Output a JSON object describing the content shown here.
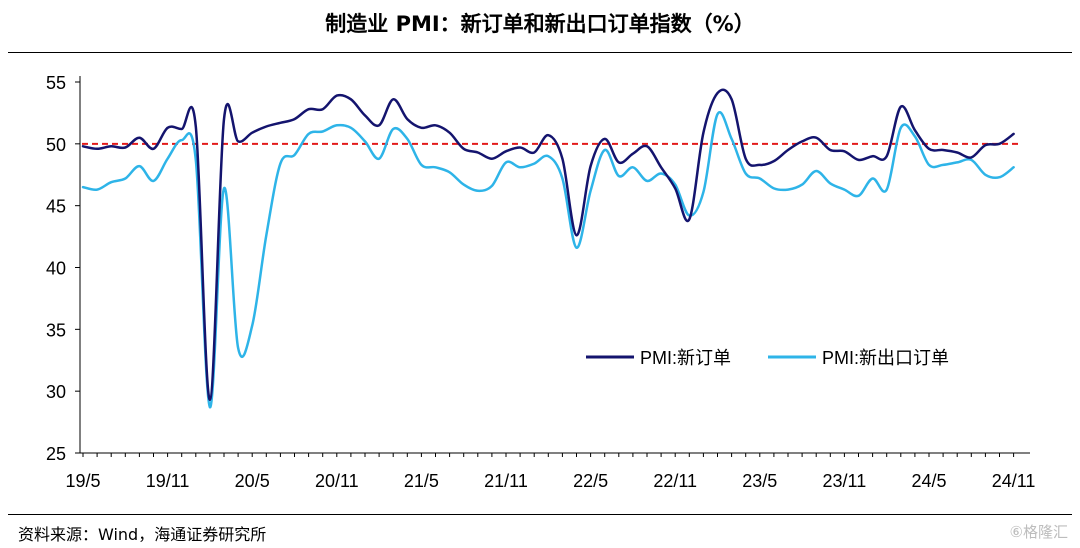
{
  "title": "制造业 PMI：新订单和新出口订单指数（%）",
  "source": "资料来源：Wind，海通证券研究所",
  "watermark": "⑥格隆汇",
  "colors": {
    "s1": "#14146e",
    "s2": "#2eb4e8",
    "ref": "#e21b1b",
    "axis": "#000000"
  },
  "chart_data": {
    "type": "line",
    "ylim": [
      25,
      55
    ],
    "yticks": [
      25,
      30,
      35,
      40,
      45,
      50,
      55
    ],
    "xlim": [
      0,
      66
    ],
    "xtick_labels": [
      "19/5",
      "19/11",
      "20/5",
      "20/11",
      "21/5",
      "21/11",
      "22/5",
      "22/11",
      "23/5",
      "23/11",
      "24/5",
      "24/11"
    ],
    "x": [
      "19/5",
      "19/6",
      "19/7",
      "19/8",
      "19/9",
      "19/10",
      "19/11",
      "19/12",
      "20/1",
      "20/2",
      "20/3",
      "20/4",
      "20/5",
      "20/6",
      "20/7",
      "20/8",
      "20/9",
      "20/10",
      "20/11",
      "20/12",
      "21/1",
      "21/2",
      "21/3",
      "21/4",
      "21/5",
      "21/6",
      "21/7",
      "21/8",
      "21/9",
      "21/10",
      "21/11",
      "21/12",
      "22/1",
      "22/2",
      "22/3",
      "22/4",
      "22/5",
      "22/6",
      "22/7",
      "22/8",
      "22/9",
      "22/10",
      "22/11",
      "22/12",
      "23/1",
      "23/2",
      "23/3",
      "23/4",
      "23/5",
      "23/6",
      "23/7",
      "23/8",
      "23/9",
      "23/10",
      "23/11",
      "23/12",
      "24/1",
      "24/2",
      "24/3",
      "24/4",
      "24/5",
      "24/6",
      "24/7",
      "24/8",
      "24/9",
      "24/10",
      "24/11"
    ],
    "reference_line": 50,
    "series": [
      {
        "name": "PMI:新订单",
        "values": [
          49.8,
          49.6,
          49.8,
          49.7,
          50.5,
          49.6,
          51.3,
          51.2,
          51.4,
          29.3,
          52.0,
          50.2,
          50.9,
          51.4,
          51.7,
          52.0,
          52.8,
          52.8,
          53.9,
          53.6,
          52.3,
          51.5,
          53.6,
          52.0,
          51.3,
          51.5,
          50.9,
          49.6,
          49.3,
          48.8,
          49.4,
          49.7,
          49.3,
          50.7,
          48.8,
          42.6,
          48.2,
          50.4,
          48.5,
          49.2,
          49.8,
          48.1,
          46.4,
          43.9,
          50.9,
          54.1,
          53.6,
          48.8,
          48.3,
          48.6,
          49.5,
          50.2,
          50.5,
          49.5,
          49.4,
          48.7,
          49.0,
          49.0,
          53.0,
          51.1,
          49.6,
          49.5,
          49.3,
          48.9,
          49.9,
          50.0,
          50.8
        ]
      },
      {
        "name": "PMI:新出口订单",
        "values": [
          46.5,
          46.3,
          46.9,
          47.2,
          48.2,
          47.0,
          48.8,
          50.3,
          48.7,
          28.7,
          46.4,
          33.5,
          35.3,
          42.6,
          48.4,
          49.1,
          50.8,
          51.0,
          51.5,
          51.3,
          50.2,
          48.8,
          51.2,
          50.4,
          48.3,
          48.1,
          47.7,
          46.7,
          46.2,
          46.6,
          48.5,
          48.1,
          48.4,
          49.0,
          47.2,
          41.6,
          46.2,
          49.5,
          47.4,
          48.1,
          47.0,
          47.6,
          46.7,
          44.2,
          46.1,
          52.4,
          50.4,
          47.6,
          47.2,
          46.4,
          46.3,
          46.7,
          47.8,
          46.8,
          46.3,
          45.8,
          47.2,
          46.3,
          51.3,
          50.6,
          48.3,
          48.3,
          48.5,
          48.7,
          47.5,
          47.3,
          48.1
        ]
      }
    ],
    "legend_position": "right-center"
  }
}
